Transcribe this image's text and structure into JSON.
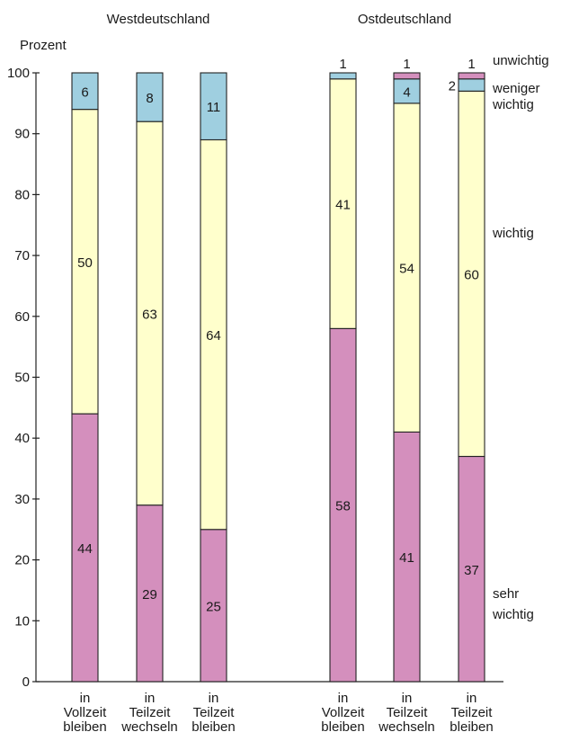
{
  "chart_data": {
    "type": "bar",
    "stacked": true,
    "ylabel": "Prozent",
    "ylim": [
      0,
      100
    ],
    "yticks": [
      0,
      10,
      20,
      30,
      40,
      50,
      60,
      70,
      80,
      90,
      100
    ],
    "grid": false,
    "groups": [
      {
        "title": "Westdeutschland",
        "bars": [
          {
            "label": [
              "in",
              "Vollzeit",
              "bleiben"
            ],
            "values": [
              44,
              50,
              6,
              0
            ]
          },
          {
            "label": [
              "in",
              "Teilzeit",
              "wechseln"
            ],
            "values": [
              29,
              63,
              8,
              0
            ]
          },
          {
            "label": [
              "in",
              "Teilzeit",
              "bleiben"
            ],
            "values": [
              25,
              64,
              11,
              0
            ]
          }
        ]
      },
      {
        "title": "Ostdeutschland",
        "bars": [
          {
            "label": [
              "in",
              "Vollzeit",
              "bleiben"
            ],
            "values": [
              58,
              41,
              1,
              0
            ]
          },
          {
            "label": [
              "in",
              "Teilzeit",
              "wechseln"
            ],
            "values": [
              41,
              54,
              4,
              1
            ]
          },
          {
            "label": [
              "in",
              "Teilzeit",
              "bleiben"
            ],
            "values": [
              37,
              60,
              2,
              1
            ]
          }
        ]
      }
    ],
    "series": [
      {
        "name": [
          "sehr",
          "wichtig"
        ],
        "color": "#d48fbd"
      },
      {
        "name": [
          "wichtig"
        ],
        "color": "#ffffcc"
      },
      {
        "name": [
          "weniger",
          "wichtig"
        ],
        "color": "#9fcfe0"
      },
      {
        "name": [
          "unwichtig"
        ],
        "color": "#d48fbd"
      }
    ]
  }
}
